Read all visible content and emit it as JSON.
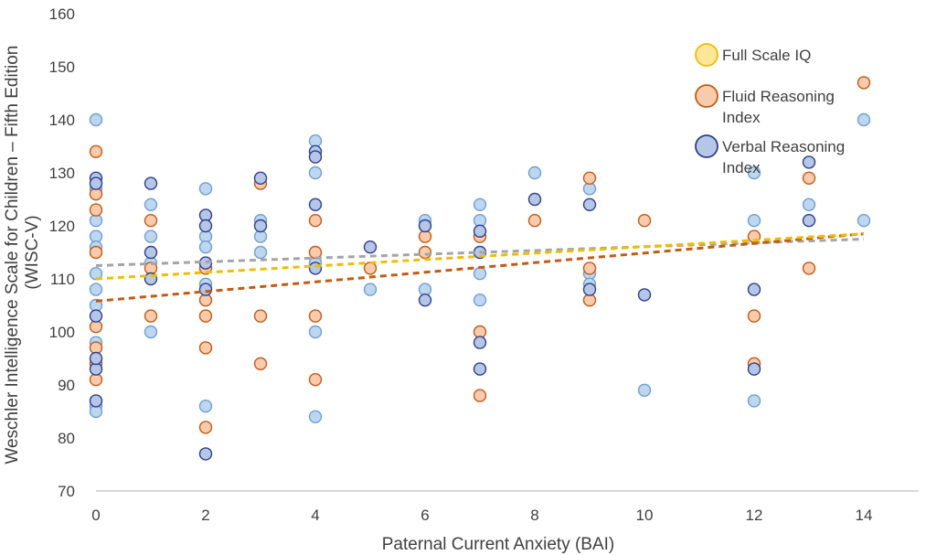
{
  "chart_data": {
    "type": "scatter",
    "title": "",
    "xlabel": "Paternal Current Anxiety (BAI)",
    "ylabel_lines": [
      "Weschler Intelligence Scale for Children – Fifth Edition",
      "(WISC-V)"
    ],
    "xlim": [
      0,
      15
    ],
    "ylim": [
      70,
      160
    ],
    "x_ticks": [
      0,
      2,
      4,
      6,
      8,
      10,
      12,
      14
    ],
    "y_ticks": [
      70,
      80,
      90,
      100,
      110,
      120,
      130,
      140,
      150,
      160
    ],
    "grid": false,
    "legend_position": "top-right",
    "series": [
      {
        "name": "Verbal Reasoning Index",
        "legend_lines": [
          "Verbal Reasoning",
          "Index"
        ],
        "fill": "#b4c7e7",
        "stroke": "#2f3f8f",
        "trendline": {
          "color": "#a5a5a5",
          "x0": 0,
          "y0": 112.5,
          "x1": 14,
          "y1": 117.5
        },
        "points": [
          [
            0,
            129
          ],
          [
            0,
            128
          ],
          [
            0,
            93
          ],
          [
            0,
            87
          ],
          [
            0,
            103
          ],
          [
            0,
            95
          ],
          [
            1,
            128
          ],
          [
            1,
            115
          ],
          [
            1,
            110
          ],
          [
            2,
            122
          ],
          [
            2,
            120
          ],
          [
            2,
            113
          ],
          [
            2,
            108
          ],
          [
            2,
            77
          ],
          [
            3,
            129
          ],
          [
            3,
            120
          ],
          [
            4,
            134
          ],
          [
            4,
            133
          ],
          [
            4,
            124
          ],
          [
            4,
            112
          ],
          [
            5,
            116
          ],
          [
            6,
            120
          ],
          [
            6,
            106
          ],
          [
            7,
            119
          ],
          [
            7,
            115
          ],
          [
            7,
            98
          ],
          [
            7,
            93
          ],
          [
            8,
            125
          ],
          [
            9,
            124
          ],
          [
            9,
            108
          ],
          [
            10,
            107
          ],
          [
            12,
            108
          ],
          [
            12,
            93
          ],
          [
            13,
            132
          ],
          [
            13,
            121
          ]
        ]
      },
      {
        "name": "Fluid Reasoning Index",
        "legend_lines": [
          "Fluid Reasoning",
          "Index"
        ],
        "fill": "#f8cbad",
        "stroke": "#c55a11",
        "trendline": {
          "color": "#c55a11",
          "x0": 0,
          "y0": 105.8,
          "x1": 14,
          "y1": 118.5
        },
        "points": [
          [
            0,
            134
          ],
          [
            0,
            126
          ],
          [
            0,
            123
          ],
          [
            0,
            115
          ],
          [
            0,
            101
          ],
          [
            0,
            97
          ],
          [
            0,
            94
          ],
          [
            0,
            91
          ],
          [
            1,
            121
          ],
          [
            1,
            112
          ],
          [
            1,
            103
          ],
          [
            2,
            112
          ],
          [
            2,
            106
          ],
          [
            2,
            103
          ],
          [
            2,
            97
          ],
          [
            2,
            82
          ],
          [
            3,
            128
          ],
          [
            3,
            103
          ],
          [
            3,
            94
          ],
          [
            4,
            121
          ],
          [
            4,
            115
          ],
          [
            4,
            103
          ],
          [
            4,
            91
          ],
          [
            5,
            112
          ],
          [
            6,
            118
          ],
          [
            6,
            115
          ],
          [
            7,
            118
          ],
          [
            7,
            100
          ],
          [
            7,
            88
          ],
          [
            8,
            121
          ],
          [
            9,
            129
          ],
          [
            9,
            112
          ],
          [
            9,
            106
          ],
          [
            10,
            121
          ],
          [
            12,
            118
          ],
          [
            12,
            103
          ],
          [
            12,
            94
          ],
          [
            13,
            129
          ],
          [
            13,
            112
          ],
          [
            14,
            147
          ]
        ]
      },
      {
        "name": "Full Scale IQ",
        "legend_lines": [
          "Full Scale IQ"
        ],
        "fill": "#ffe699",
        "stroke": "#f0bd00",
        "trendline": {
          "color": "#f0bd00",
          "x0": 0,
          "y0": 110,
          "x1": 14,
          "y1": 118.5
        },
        "points": [
          [
            0,
            140
          ],
          [
            0,
            127
          ],
          [
            0,
            121
          ],
          [
            0,
            118
          ],
          [
            0,
            116
          ],
          [
            0,
            111
          ],
          [
            0,
            108
          ],
          [
            0,
            105
          ],
          [
            0,
            98
          ],
          [
            0,
            86
          ],
          [
            0,
            85
          ],
          [
            1,
            124
          ],
          [
            1,
            118
          ],
          [
            1,
            113
          ],
          [
            1,
            100
          ],
          [
            2,
            127
          ],
          [
            2,
            118
          ],
          [
            2,
            116
          ],
          [
            2,
            109
          ],
          [
            2,
            86
          ],
          [
            3,
            121
          ],
          [
            3,
            118
          ],
          [
            3,
            115
          ],
          [
            4,
            136
          ],
          [
            4,
            130
          ],
          [
            4,
            113
          ],
          [
            4,
            100
          ],
          [
            4,
            84
          ],
          [
            5,
            108
          ],
          [
            6,
            121
          ],
          [
            6,
            108
          ],
          [
            7,
            124
          ],
          [
            7,
            121
          ],
          [
            7,
            111
          ],
          [
            7,
            106
          ],
          [
            8,
            130
          ],
          [
            9,
            127
          ],
          [
            9,
            111
          ],
          [
            9,
            109
          ],
          [
            10,
            89
          ],
          [
            12,
            130
          ],
          [
            12,
            121
          ],
          [
            12,
            87
          ],
          [
            13,
            124
          ],
          [
            14,
            140
          ],
          [
            14,
            121
          ]
        ]
      }
    ],
    "scatter_marker_fill": "#bdd7ee",
    "scatter_marker_stroke": "#6f9fd8"
  }
}
